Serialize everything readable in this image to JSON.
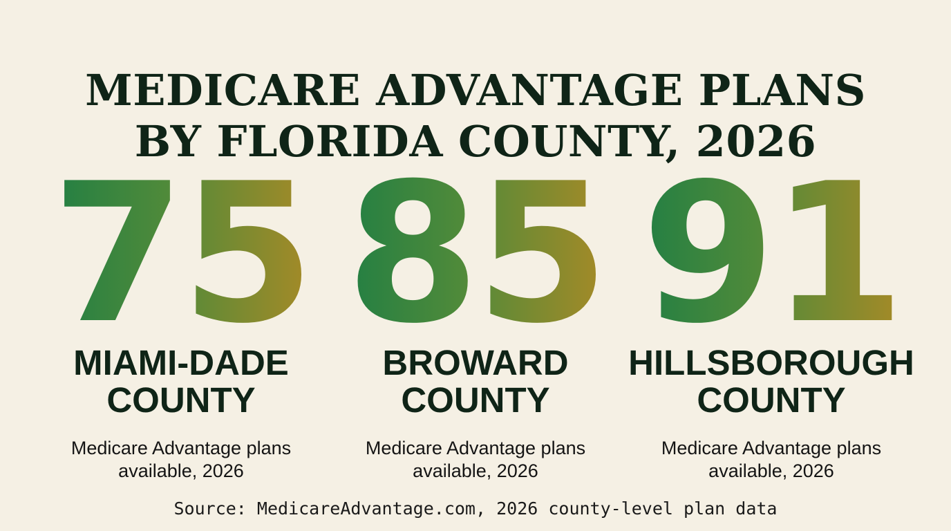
{
  "headline": {
    "line1": "MEDICARE ADVANTAGE PLANS",
    "line2": "BY FLORIDA COUNTY, 2026"
  },
  "stats": [
    {
      "value": "75",
      "county_line1": "MIAMI-DADE",
      "county_line2": "COUNTY",
      "caption_line1": "Medicare Advantage plans",
      "caption_line2": "available, 2026"
    },
    {
      "value": "85",
      "county_line1": "BROWARD",
      "county_line2": "COUNTY",
      "caption_line1": "Medicare Advantage plans",
      "caption_line2": "available, 2026"
    },
    {
      "value": "91",
      "county_line1": "HILLSBOROUGH",
      "county_line2": "COUNTY",
      "caption_line1": "Medicare Advantage plans",
      "caption_line2": "available, 2026"
    }
  ],
  "source": "Source: MedicareAdvantage.com, 2026 county-level plan data",
  "colors": {
    "background": "#f5f0e4",
    "text_dark": "#0f2417",
    "gradient_start": "#1a7d45",
    "gradient_end": "#b38a24"
  }
}
